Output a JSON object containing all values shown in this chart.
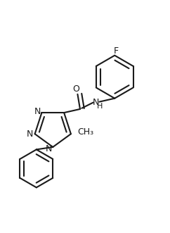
{
  "background_color": "#ffffff",
  "line_color": "#1a1a1a",
  "text_color": "#1a1a1a",
  "figsize": [
    2.42,
    3.31
  ],
  "dpi": 100,
  "bond_width": 1.5,
  "font_size": 9,
  "label_F": "F",
  "label_O": "O",
  "label_CH3": "CH₃"
}
